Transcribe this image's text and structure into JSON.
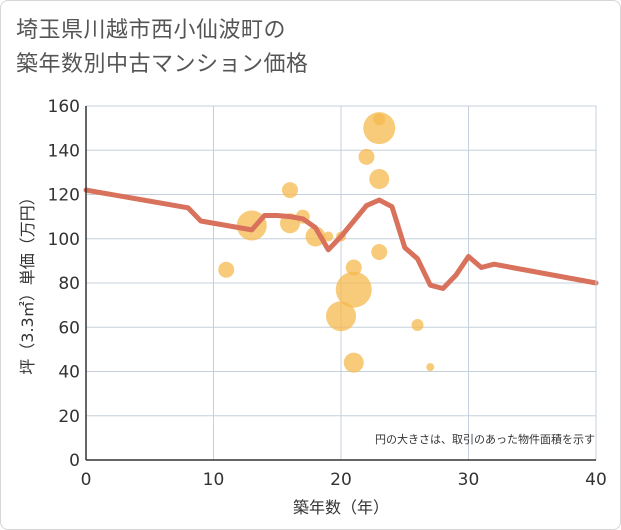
{
  "title": {
    "line1": "埼玉県川越市西小仙波町の",
    "line2": "築年数別中古マンション価格"
  },
  "note": "円の大きさは、取引のあった物件面積を示す",
  "colors": {
    "line": "#d9725c",
    "bubble": "#f5b94e",
    "grid": "#c5d0dc",
    "axis": "#333333"
  },
  "chart_data": {
    "type": "scatter",
    "xlabel": "築年数（年）",
    "ylabel": "坪（3.3㎡）単価（万円）",
    "xlim": [
      0,
      40
    ],
    "ylim": [
      0,
      160
    ],
    "xticks": [
      0,
      10,
      20,
      30,
      40
    ],
    "yticks": [
      0,
      20,
      40,
      60,
      80,
      100,
      120,
      140,
      160
    ],
    "grid": true,
    "bubbles": [
      {
        "x": 11,
        "y": 86,
        "r": 8
      },
      {
        "x": 13,
        "y": 106,
        "r": 15
      },
      {
        "x": 16,
        "y": 122,
        "r": 8
      },
      {
        "x": 16,
        "y": 107,
        "r": 10
      },
      {
        "x": 17,
        "y": 110,
        "r": 7
      },
      {
        "x": 18,
        "y": 101,
        "r": 10
      },
      {
        "x": 19,
        "y": 101,
        "r": 5
      },
      {
        "x": 20,
        "y": 101,
        "r": 5
      },
      {
        "x": 20,
        "y": 65,
        "r": 15
      },
      {
        "x": 21,
        "y": 87,
        "r": 8
      },
      {
        "x": 21,
        "y": 77,
        "r": 18
      },
      {
        "x": 21,
        "y": 44,
        "r": 10
      },
      {
        "x": 22,
        "y": 137,
        "r": 8
      },
      {
        "x": 23,
        "y": 150,
        "r": 16
      },
      {
        "x": 23,
        "y": 154,
        "r": 6
      },
      {
        "x": 23,
        "y": 127,
        "r": 10
      },
      {
        "x": 23,
        "y": 94,
        "r": 8
      },
      {
        "x": 26,
        "y": 61,
        "r": 6
      },
      {
        "x": 27,
        "y": 42,
        "r": 4
      }
    ],
    "trend": {
      "x": [
        0,
        8,
        9,
        13,
        14,
        15,
        16,
        17,
        18,
        19,
        20,
        21,
        22,
        23,
        24,
        25,
        26,
        27,
        28,
        29,
        30,
        31,
        32,
        40
      ],
      "y": [
        122,
        114,
        108,
        104,
        110.5,
        110.5,
        110,
        109,
        105,
        95,
        101,
        108,
        115,
        117.5,
        114.5,
        96,
        91,
        79,
        77.5,
        83.5,
        92,
        87,
        88.5,
        80
      ]
    }
  }
}
